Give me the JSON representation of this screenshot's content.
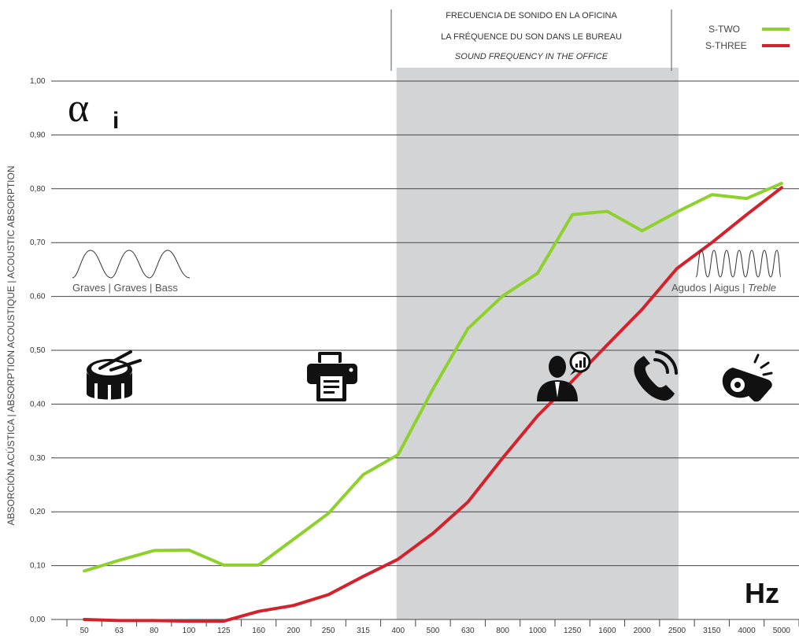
{
  "chart_data": {
    "type": "line",
    "header": {
      "line1": "FRECUENCIA DE SONIDO EN LA OFICINA",
      "line2": "LA FRÉQUENCE DU SON DANS LE BUREAU",
      "line3": "SOUND FREQUENCY IN THE OFFICE"
    },
    "ylabel": "ABSORCIÓN ACÚSTICA | ABSORPTION ACOUSTIQUE | ACOUSTIC ABSORPTION",
    "symbol": "α",
    "symbol_sub": "i",
    "xunit": "Hz",
    "ylim": [
      0,
      1
    ],
    "yticks": [
      "0,00",
      "0,10",
      "0,20",
      "0,30",
      "0,40",
      "0,50",
      "0,60",
      "0,70",
      "0,80",
      "0,90",
      "1,00"
    ],
    "categories": [
      "50",
      "63",
      "80",
      "100",
      "125",
      "160",
      "200",
      "250",
      "315",
      "400",
      "500",
      "630",
      "800",
      "1000",
      "1250",
      "1600",
      "2000",
      "2500",
      "3150",
      "4000",
      "5000"
    ],
    "highlight_range": [
      "400",
      "2500"
    ],
    "bass_label": "Graves | Graves | Bass",
    "treble_label": "Agudos | Aigus | ",
    "treble_label_italic": "Treble",
    "legend_position": "top-right",
    "icons": [
      "drum-icon",
      "printer-icon",
      "person-talking-icon",
      "phone-icon",
      "whistle-icon"
    ],
    "series": [
      {
        "name": "S-TWO",
        "color": "#8ed12d",
        "values": [
          0.09,
          0.11,
          0.128,
          0.129,
          0.101,
          0.101,
          0.149,
          0.197,
          0.269,
          0.306,
          0.428,
          0.54,
          0.601,
          0.643,
          0.752,
          0.758,
          0.722,
          0.757,
          0.789,
          0.782,
          0.81
        ]
      },
      {
        "name": "S-THREE",
        "color": "#d4212b",
        "values": [
          0.0,
          -0.002,
          -0.002,
          -0.003,
          -0.003,
          0.015,
          0.026,
          0.046,
          0.08,
          0.112,
          0.16,
          0.218,
          0.3,
          0.378,
          0.443,
          0.51,
          0.576,
          0.652,
          0.7,
          0.752,
          0.802
        ]
      }
    ]
  }
}
